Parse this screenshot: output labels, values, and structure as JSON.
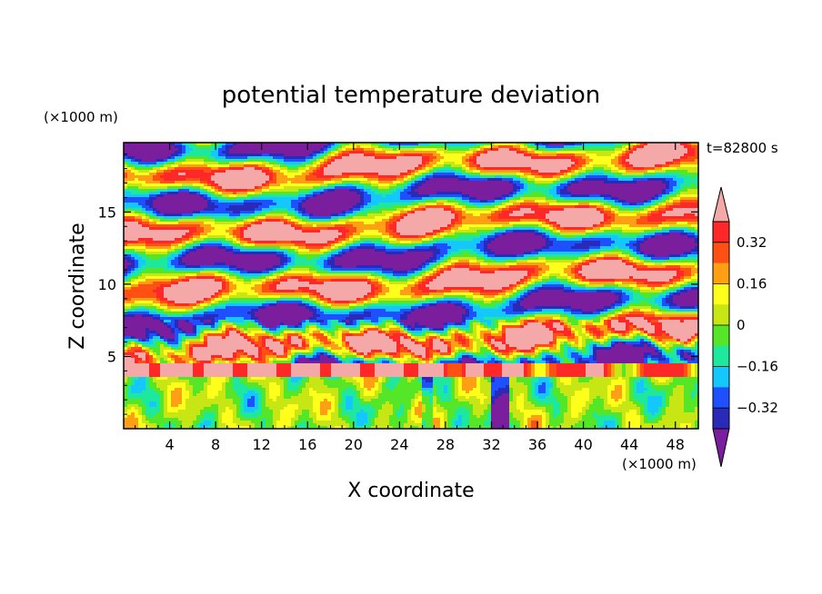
{
  "chart_data": {
    "type": "heatmap",
    "title": "potential temperature deviation",
    "xlabel": "X coordinate",
    "ylabel": "Z coordinate",
    "x_unit": "(×1000 m)",
    "y_unit": "(×1000 m)",
    "time_label": "t=82800 s",
    "xlim": [
      0,
      50
    ],
    "ylim": [
      0,
      19.8
    ],
    "x_ticks": [
      4,
      8,
      12,
      16,
      20,
      24,
      28,
      32,
      36,
      40,
      44,
      48
    ],
    "x_tick_labels": [
      "4",
      "8",
      "12",
      "16",
      "20",
      "24",
      "28",
      "32",
      "36",
      "40",
      "44",
      "48"
    ],
    "y_ticks": [
      5,
      10,
      15
    ],
    "y_tick_labels": [
      "5",
      "10",
      "15"
    ],
    "colorbar": {
      "levels": [
        -0.4,
        -0.32,
        -0.24,
        -0.16,
        -0.08,
        0,
        0.08,
        0.16,
        0.24,
        0.32,
        0.4
      ],
      "labeled_levels": [
        0.32,
        0.16,
        0,
        -0.16,
        -0.32
      ],
      "labels": [
        "0.32",
        "0.16",
        "0",
        "−0.16",
        "−0.32"
      ],
      "colors": [
        "#7a1e9e",
        "#2a2ab8",
        "#1f50ff",
        "#14c8ff",
        "#1ee89e",
        "#56e628",
        "#c8e614",
        "#ffff1c",
        "#ffa014",
        "#ff5014",
        "#ff2828",
        "#f4a8a8"
      ],
      "extend": "both"
    },
    "field_description": "stratified wave pattern; near-neutral boundary layer below ~4 km, sharp inversion layer near 4 km, banded waves aloft"
  }
}
